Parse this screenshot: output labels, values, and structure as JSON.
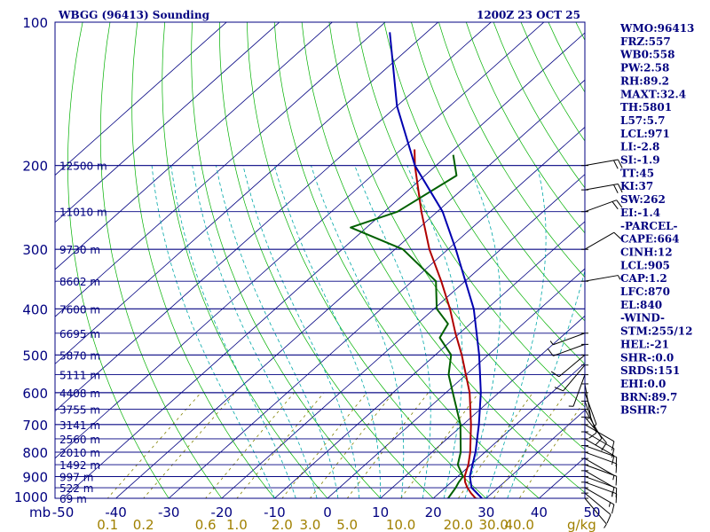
{
  "header": {
    "station": "WBGG (96413) Sounding",
    "time": "1200Z 23 OCT 25"
  },
  "indices": [
    "WMO:96413",
    "FRZ:557",
    "WB0:558",
    "PW:2.58",
    "RH:89.2",
    "MAXT:32.4",
    "TH:5801",
    "L57:5.7",
    "LCL:971",
    "LI:-2.8",
    "SI:-1.9",
    "TT:45",
    "KI:37",
    "SW:262",
    "EI:-1.4",
    "-PARCEL-",
    "CAPE:664",
    "CINH:12",
    "LCL:905",
    "CAP:1.2",
    "LFC:870",
    "EL:840",
    "-WIND-",
    "STM:255/12",
    "HEL:-21",
    "SHR-:0.0",
    "SRDS:151",
    "EHI:0.0",
    "BRN:89.7",
    "BSHR:7"
  ],
  "axes": {
    "pressure_unit": "mb",
    "mixing_ratio_unit": "g/kg",
    "pressure_ticks": [
      {
        "p": 100,
        "label": "100"
      },
      {
        "p": 200,
        "label": "200"
      },
      {
        "p": 300,
        "label": "300"
      },
      {
        "p": 400,
        "label": "400"
      },
      {
        "p": 500,
        "label": "500"
      },
      {
        "p": 600,
        "label": "600"
      },
      {
        "p": 700,
        "label": "700"
      },
      {
        "p": 800,
        "label": "800"
      },
      {
        "p": 900,
        "label": "900"
      },
      {
        "p": 1000,
        "label": "1000"
      }
    ],
    "temperature_ticks": [
      "-50",
      "-40",
      "-30",
      "-20",
      "-10",
      "0",
      "10",
      "20",
      "30",
      "40",
      "50"
    ],
    "mixing_ratio_labels": [
      {
        "w": 0.1,
        "label": "0.1"
      },
      {
        "w": 0.2,
        "label": "0.2"
      },
      {
        "w": 0.6,
        "label": "0.6"
      },
      {
        "w": 1.0,
        "label": "1.0"
      },
      {
        "w": 2.0,
        "label": "2.0"
      },
      {
        "w": 3.0,
        "label": "3.0"
      },
      {
        "w": 5.0,
        "label": "5.0"
      },
      {
        "w": 10.0,
        "label": "10.0"
      },
      {
        "w": 20.0,
        "label": "20.0"
      },
      {
        "w": 30.0,
        "label": "30.0"
      },
      {
        "w": 40.0,
        "label": "40.0"
      }
    ]
  },
  "chart_data": {
    "type": "line",
    "title": "WBGG (96413) Sounding",
    "subtitle": "1200Z 23 OCT 25",
    "xlabel": "",
    "ylabel": "mb",
    "y_scale": "log",
    "ylim": [
      1000,
      100
    ],
    "xlim": [
      -50,
      50
    ],
    "height_levels": [
      {
        "p": 200,
        "label": "12500 m"
      },
      {
        "p": 250,
        "label": "11010 m"
      },
      {
        "p": 300,
        "label": "9730 m"
      },
      {
        "p": 350,
        "label": "8602 m"
      },
      {
        "p": 400,
        "label": "7600 m"
      },
      {
        "p": 450,
        "label": "6695 m"
      },
      {
        "p": 500,
        "label": "5870 m"
      },
      {
        "p": 550,
        "label": "5111 m"
      },
      {
        "p": 600,
        "label": "4408 m"
      },
      {
        "p": 650,
        "label": "3755 m"
      },
      {
        "p": 700,
        "label": "3141 m"
      },
      {
        "p": 750,
        "label": "2560 m"
      },
      {
        "p": 800,
        "label": "2010 m"
      },
      {
        "p": 850,
        "label": "1492 m"
      },
      {
        "p": 900,
        "label": "997 m"
      },
      {
        "p": 950,
        "label": "522 m"
      },
      {
        "p": 1000,
        "label": "69 m"
      }
    ],
    "series": [
      {
        "points": [
          [
            1005,
            29.2
          ],
          [
            1000,
            28.0
          ],
          [
            975,
            26.0
          ],
          [
            950,
            24.2
          ],
          [
            925,
            22.6
          ],
          [
            900,
            21.3
          ],
          [
            850,
            19.5
          ],
          [
            800,
            17.2
          ],
          [
            700,
            11.5
          ],
          [
            600,
            4.5
          ],
          [
            500,
            -5.0
          ],
          [
            450,
            -10.8
          ],
          [
            400,
            -17.0
          ],
          [
            350,
            -24.5
          ],
          [
            300,
            -33.5
          ],
          [
            250,
            -43.0
          ],
          [
            200,
            -54.0
          ],
          [
            185,
            -57.5
          ]
        ]
      },
      {
        "points": [
          [
            1005,
            23.0
          ],
          [
            1000,
            22.8
          ],
          [
            950,
            22.0
          ],
          [
            925,
            21.4
          ],
          [
            900,
            21.0
          ],
          [
            850,
            17.5
          ],
          [
            800,
            15.4
          ],
          [
            700,
            9.5
          ],
          [
            600,
            1.3
          ],
          [
            550,
            -3.3
          ],
          [
            500,
            -7.0
          ],
          [
            460,
            -12.8
          ],
          [
            430,
            -14.2
          ],
          [
            400,
            -19.5
          ],
          [
            350,
            -25.5
          ],
          [
            300,
            -38.5
          ],
          [
            270,
            -53.0
          ],
          [
            250,
            -47.5
          ],
          [
            210,
            -44.0
          ],
          [
            190,
            -49.0
          ]
        ]
      },
      {
        "points": [
          [
            1000,
            29.2
          ],
          [
            950,
            25.0
          ],
          [
            900,
            22.3
          ],
          [
            850,
            20.3
          ],
          [
            800,
            18.2
          ],
          [
            700,
            13.0
          ],
          [
            600,
            6.6
          ],
          [
            500,
            -1.7
          ],
          [
            400,
            -12.5
          ],
          [
            300,
            -28.5
          ],
          [
            250,
            -39.0
          ],
          [
            200,
            -54.0
          ],
          [
            150,
            -70.0
          ],
          [
            105,
            -87.0
          ]
        ]
      }
    ],
    "wind_barbs": [
      {
        "p": 1000,
        "dir": 140,
        "spd": 5
      },
      {
        "p": 975,
        "dir": 130,
        "spd": 10
      },
      {
        "p": 950,
        "dir": 120,
        "spd": 15
      },
      {
        "p": 925,
        "dir": 110,
        "spd": 15
      },
      {
        "p": 900,
        "dir": 110,
        "spd": 10
      },
      {
        "p": 875,
        "dir": 120,
        "spd": 10
      },
      {
        "p": 850,
        "dir": 110,
        "spd": 10
      },
      {
        "p": 825,
        "dir": 120,
        "spd": 5
      },
      {
        "p": 800,
        "dir": 110,
        "spd": 10
      },
      {
        "p": 775,
        "dir": 110,
        "spd": 10
      },
      {
        "p": 750,
        "dir": 120,
        "spd": 10
      },
      {
        "p": 725,
        "dir": 120,
        "spd": 10
      },
      {
        "p": 700,
        "dir": 120,
        "spd": 10
      },
      {
        "p": 675,
        "dir": 140,
        "spd": 10
      },
      {
        "p": 650,
        "dir": 150,
        "spd": 10
      },
      {
        "p": 625,
        "dir": 160,
        "spd": 10
      },
      {
        "p": 600,
        "dir": 160,
        "spd": 5
      },
      {
        "p": 575,
        "dir": 170,
        "spd": 5
      },
      {
        "p": 550,
        "dir": 200,
        "spd": 5
      },
      {
        "p": 525,
        "dir": 220,
        "spd": 10
      },
      {
        "p": 500,
        "dir": 230,
        "spd": 10
      },
      {
        "p": 475,
        "dir": 250,
        "spd": 10
      },
      {
        "p": 450,
        "dir": 250,
        "spd": 5
      },
      {
        "p": 350,
        "dir": 80,
        "spd": 5
      },
      {
        "p": 300,
        "dir": 60,
        "spd": 10
      },
      {
        "p": 250,
        "dir": 70,
        "spd": 20
      },
      {
        "p": 225,
        "dir": 80,
        "spd": 20
      },
      {
        "p": 200,
        "dir": 80,
        "spd": 20
      }
    ],
    "colors": {
      "isobar": "#000080",
      "isotherm": "#000080",
      "dry_adiabat": "#00b000",
      "moist_adiabat": "#00a8a8",
      "mixing_ratio": "#808000",
      "temperature": "#b00000",
      "dewpoint": "#006000",
      "parcel": "#0000b0",
      "barb": "#000000",
      "ticklabel": "#000080",
      "mixlabel": "#a08000"
    },
    "grid": true
  }
}
